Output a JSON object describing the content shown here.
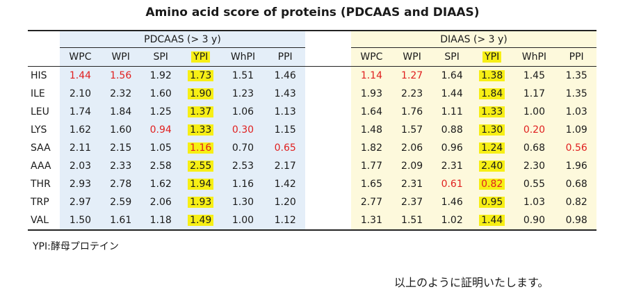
{
  "title": "Amino acid score of proteins (PDCAAS and DIAAS)",
  "groups": {
    "pdcaas": "PDCAAS (> 3 y)",
    "diaas": "DIAAS (> 3 y)"
  },
  "columns": [
    "WPC",
    "WPI",
    "SPI",
    "YPI",
    "WhPI",
    "PPI"
  ],
  "highlight_column": "YPI",
  "highlight_color": "#f7ef15",
  "low_value_color": "#e02020",
  "rows": [
    {
      "label": "HIS",
      "pdcaas": [
        "1.44",
        "1.56",
        "1.92",
        "1.73",
        "1.51",
        "1.46"
      ],
      "pdcaas_red": [
        0,
        1
      ],
      "diaas": [
        "1.14",
        "1.27",
        "1.64",
        "1.38",
        "1.45",
        "1.35"
      ],
      "diaas_red": [
        0,
        1
      ]
    },
    {
      "label": "ILE",
      "pdcaas": [
        "2.10",
        "2.32",
        "1.60",
        "1.90",
        "1.23",
        "1.43"
      ],
      "pdcaas_red": [],
      "diaas": [
        "1.93",
        "2.23",
        "1.44",
        "1.84",
        "1.17",
        "1.35"
      ],
      "diaas_red": []
    },
    {
      "label": "LEU",
      "pdcaas": [
        "1.74",
        "1.84",
        "1.25",
        "1.37",
        "1.06",
        "1.13"
      ],
      "pdcaas_red": [],
      "diaas": [
        "1.64",
        "1.76",
        "1.11",
        "1.33",
        "1.00",
        "1.03"
      ],
      "diaas_red": []
    },
    {
      "label": "LYS",
      "pdcaas": [
        "1.62",
        "1.60",
        "0.94",
        "1.33",
        "0.30",
        "1.15"
      ],
      "pdcaas_red": [
        2,
        4
      ],
      "diaas": [
        "1.48",
        "1.57",
        "0.88",
        "1.30",
        "0.20",
        "1.09"
      ],
      "diaas_red": [
        4
      ]
    },
    {
      "label": "SAA",
      "pdcaas": [
        "2.11",
        "2.15",
        "1.05",
        "1.16",
        "0.70",
        "0.65"
      ],
      "pdcaas_red": [
        3,
        5
      ],
      "diaas": [
        "1.82",
        "2.06",
        "0.96",
        "1.24",
        "0.68",
        "0.56"
      ],
      "diaas_red": [
        5
      ]
    },
    {
      "label": "AAA",
      "pdcaas": [
        "2.03",
        "2.33",
        "2.58",
        "2.55",
        "2.53",
        "2.17"
      ],
      "pdcaas_red": [],
      "diaas": [
        "1.77",
        "2.09",
        "2.31",
        "2.40",
        "2.30",
        "1.96"
      ],
      "diaas_red": []
    },
    {
      "label": "THR",
      "pdcaas": [
        "2.93",
        "2.78",
        "1.62",
        "1.94",
        "1.16",
        "1.42"
      ],
      "pdcaas_red": [],
      "diaas": [
        "1.65",
        "2.31",
        "0.61",
        "0.82",
        "0.55",
        "0.68"
      ],
      "diaas_red": [
        2,
        3
      ]
    },
    {
      "label": "TRP",
      "pdcaas": [
        "2.97",
        "2.59",
        "2.06",
        "1.93",
        "1.30",
        "1.20"
      ],
      "pdcaas_red": [],
      "diaas": [
        "2.77",
        "2.37",
        "1.46",
        "0.95",
        "1.03",
        "0.82"
      ],
      "diaas_red": []
    },
    {
      "label": "VAL",
      "pdcaas": [
        "1.50",
        "1.61",
        "1.18",
        "1.49",
        "1.00",
        "1.12"
      ],
      "pdcaas_red": [],
      "diaas": [
        "1.31",
        "1.51",
        "1.02",
        "1.44",
        "0.90",
        "0.98"
      ],
      "diaas_red": []
    }
  ],
  "footnote": "YPI:酵母プロテイン",
  "closing": "以上のように証明いたします。"
}
